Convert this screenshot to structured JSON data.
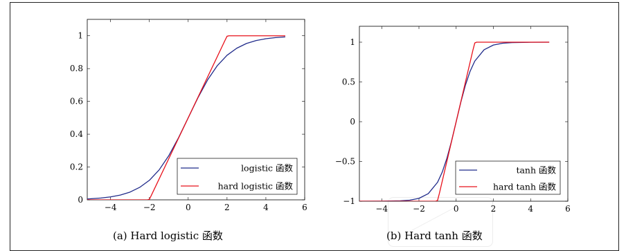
{
  "chart_data": [
    {
      "type": "line",
      "caption": "(a) Hard logistic 函数",
      "xlim": [
        -5.2,
        6
      ],
      "ylim": [
        0,
        1.1
      ],
      "x_ticks": [
        -4,
        -2,
        0,
        2,
        4,
        6
      ],
      "y_ticks": [
        0,
        0.2,
        0.4,
        0.6,
        0.8,
        1
      ],
      "y_tick_labels": [
        "0",
        "0.2",
        "0.4",
        "0.6",
        "0.8",
        "1"
      ],
      "legend_position": "bottom-right",
      "series": [
        {
          "name": "logistic 函数",
          "color": "#1f2a8a",
          "x": [
            -5.2,
            -5,
            -4.5,
            -4,
            -3.5,
            -3,
            -2.5,
            -2,
            -1.5,
            -1,
            -0.5,
            0,
            0.5,
            1,
            1.5,
            2,
            2.5,
            3,
            3.5,
            4,
            4.5,
            5
          ],
          "y": [
            0.005,
            0.007,
            0.011,
            0.018,
            0.029,
            0.047,
            0.076,
            0.119,
            0.182,
            0.269,
            0.378,
            0.5,
            0.622,
            0.731,
            0.818,
            0.881,
            0.924,
            0.953,
            0.971,
            0.982,
            0.989,
            0.993
          ]
        },
        {
          "name": "hard logistic 函数",
          "color": "#e8101a",
          "x": [
            -5.2,
            -2.1,
            -2,
            -1.9,
            1.9,
            2,
            2.1,
            5
          ],
          "y": [
            0,
            0,
            0.003,
            0.027,
            0.973,
            0.997,
            1,
            1
          ]
        }
      ]
    },
    {
      "type": "line",
      "caption": "(b) Hard tanh 函数",
      "xlim": [
        -5.2,
        6
      ],
      "ylim": [
        -1,
        1.2
      ],
      "x_ticks": [
        -4,
        -2,
        0,
        2,
        4,
        6
      ],
      "y_ticks": [
        -1,
        -0.5,
        0,
        0.5,
        1
      ],
      "y_tick_labels": [
        "−1",
        "−0.5",
        "0",
        "0.5",
        "1"
      ],
      "legend_position": "bottom-right",
      "series": [
        {
          "name": "tanh 函数",
          "color": "#1f2a8a",
          "x": [
            -5.2,
            -4,
            -3,
            -2.5,
            -2,
            -1.5,
            -1,
            -0.75,
            -0.5,
            -0.25,
            0,
            0.25,
            0.5,
            0.75,
            1,
            1.5,
            2,
            2.5,
            3,
            4,
            5
          ],
          "y": [
            -1,
            -0.999,
            -0.995,
            -0.987,
            -0.964,
            -0.905,
            -0.762,
            -0.635,
            -0.462,
            -0.245,
            0,
            0.245,
            0.462,
            0.635,
            0.762,
            0.905,
            0.964,
            0.987,
            0.995,
            0.999,
            1
          ]
        },
        {
          "name": "hard tanh 函数",
          "color": "#e8101a",
          "x": [
            -5.2,
            -1.1,
            -1,
            -0.9,
            0.9,
            1,
            1.1,
            5
          ],
          "y": [
            -1,
            -1,
            -0.99,
            -0.9,
            0.9,
            0.99,
            1,
            1
          ]
        }
      ]
    }
  ]
}
